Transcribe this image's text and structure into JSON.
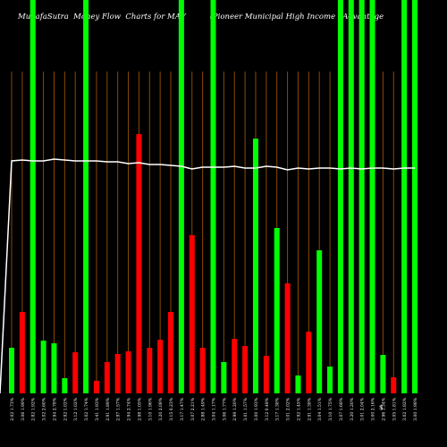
{
  "chart_data": {
    "type": "bar",
    "title": "MunafaSutra  Money Flow  Charts for MAV          (Pioneer Municipal High Income   Advantage",
    "annotation": "$",
    "categories": [
      "2.02 1.73%",
      "3.06 1.99%",
      "2.82 1.92%",
      "3.02 2.60%",
      "2.94 2.78%",
      "2.92 1.02%",
      "3.12 1.02%",
      "3.02 1.74%",
      "3.41 1.93%",
      "2.91 1.89%",
      "2.97 1.57%",
      "2.94 2.74%",
      "2.98 1.05%",
      "3.10 1.96%",
      "3.20 2.08%",
      "3.15 0.23%",
      "3.17 1.47%",
      "3.07 2.21%",
      "2.88 1.49%",
      "3.04 1.17%",
      "3.06 1.77%",
      "2.99 1.20%",
      "3.01 1.57%",
      "3.00 1.93%",
      "3.12 0.48%",
      "3.17 1.38%",
      "3.01 2.02%",
      "2.92 1.45%",
      "2.91 1.38%",
      "3.04 1.51%",
      "3.10 1.75%",
      "3.07 1.68%",
      "3.20 1.20%",
      "3.01 2.04%",
      "3.00 2.16%",
      "2.96 1.34%",
      "3.05 1.81%",
      "3.02 1.82%",
      "3.00 1.98%"
    ],
    "bars": {
      "values": [
        51,
        91,
        440,
        59,
        56,
        17,
        46,
        440,
        14,
        35,
        44,
        47,
        290,
        51,
        60,
        91,
        440,
        177,
        51,
        440,
        35,
        61,
        53,
        285,
        42,
        185,
        123,
        20,
        69,
        160,
        30,
        440,
        440,
        440,
        440,
        43,
        18,
        440,
        440
      ],
      "colors": [
        "#00ff00",
        "#ff0000",
        "#00ff00",
        "#00ff00",
        "#00ff00",
        "#00ff00",
        "#ff0000",
        "#00ff00",
        "#ff0000",
        "#ff0000",
        "#ff0000",
        "#ff0000",
        "#ff0000",
        "#ff0000",
        "#ff0000",
        "#ff0000",
        "#00ff00",
        "#ff0000",
        "#ff0000",
        "#00ff00",
        "#00ff00",
        "#ff0000",
        "#ff0000",
        "#00ff00",
        "#ff0000",
        "#00ff00",
        "#ff0000",
        "#00ff00",
        "#ff0000",
        "#00ff00",
        "#00ff00",
        "#00ff00",
        "#00ff00",
        "#00ff00",
        "#00ff00",
        "#00ff00",
        "#ff0000",
        "#00ff00",
        "#00ff00"
      ]
    },
    "line": {
      "color": "#ffffff",
      "values": [
        260,
        261,
        260,
        260,
        262,
        261,
        260,
        260,
        260,
        259,
        259,
        257,
        258,
        256,
        256,
        255,
        254,
        251,
        253,
        253,
        253,
        254,
        252,
        252,
        254,
        253,
        250,
        252,
        251,
        252,
        252,
        251,
        252,
        251,
        252,
        252,
        251,
        252,
        252
      ]
    },
    "ylim": [
      0,
      440
    ],
    "guide_color": "#8b4a00"
  }
}
